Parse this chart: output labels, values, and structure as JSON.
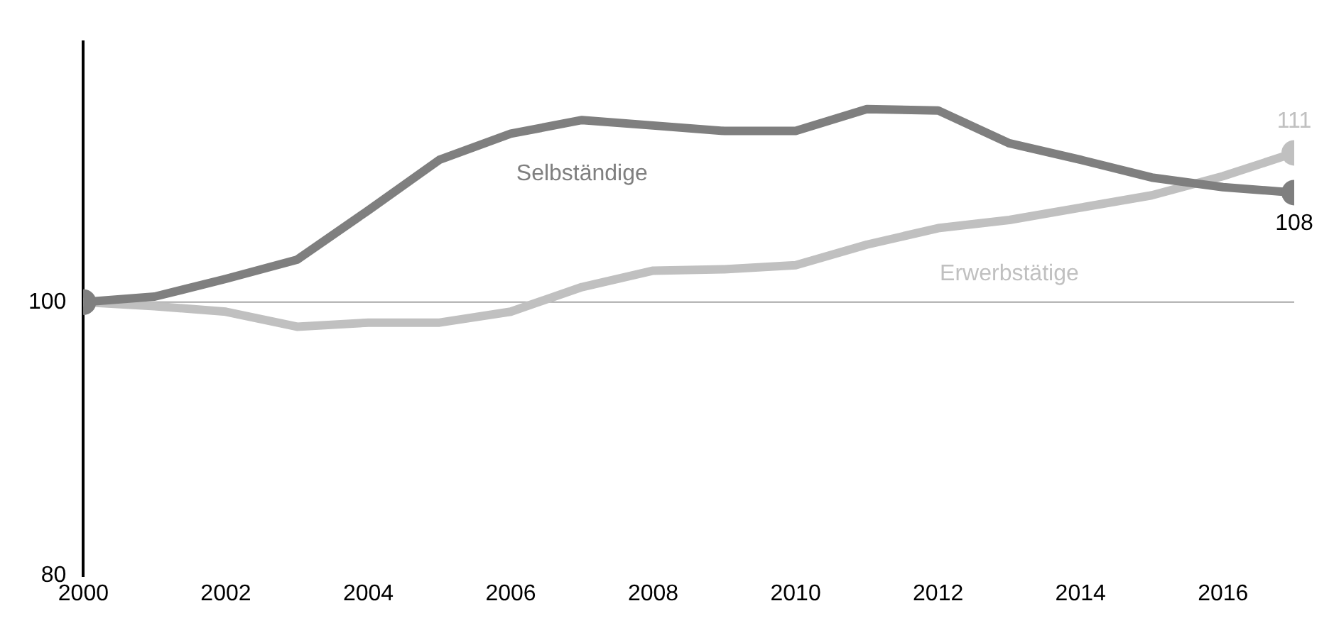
{
  "chart_data": {
    "type": "line",
    "x": [
      2000,
      2001,
      2002,
      2003,
      2004,
      2005,
      2006,
      2007,
      2008,
      2009,
      2010,
      2011,
      2012,
      2013,
      2014,
      2015,
      2016,
      2017
    ],
    "series": [
      {
        "name": "Selbständige",
        "color": "#7f7f7f",
        "values": [
          100,
          100.4,
          101.7,
          103.1,
          106.7,
          110.4,
          112.3,
          113.3,
          112.9,
          112.5,
          112.5,
          114.1,
          114.0,
          111.6,
          110.4,
          109.1,
          108.4,
          108
        ],
        "value_labels": [
          null,
          null,
          null,
          null,
          null,
          null,
          null,
          null,
          null,
          null,
          null,
          null,
          null,
          null,
          null,
          null,
          null,
          "108"
        ]
      },
      {
        "name": "Erwerbstätige",
        "color": "#c0c0c0",
        "values": [
          100,
          99.7,
          99.3,
          98.2,
          98.5,
          98.5,
          99.3,
          101.1,
          102.3,
          102.4,
          102.7,
          104.2,
          105.4,
          106.0,
          106.9,
          107.8,
          109.2,
          110.9
        ],
        "value_labels": [
          null,
          null,
          null,
          null,
          null,
          null,
          null,
          null,
          null,
          null,
          null,
          null,
          null,
          null,
          null,
          null,
          null,
          "111"
        ]
      }
    ],
    "xlim": [
      2000,
      2017
    ],
    "xticks": [
      2000,
      2002,
      2004,
      2006,
      2008,
      2010,
      2012,
      2014,
      2016
    ],
    "ylim": [
      80,
      119
    ],
    "yticks": [
      80,
      100
    ],
    "ref_lines": [
      {
        "axis": "y",
        "value": 100,
        "color": "#a6a6a6"
      }
    ],
    "grid": false,
    "legend": false,
    "line_style": "solid"
  }
}
